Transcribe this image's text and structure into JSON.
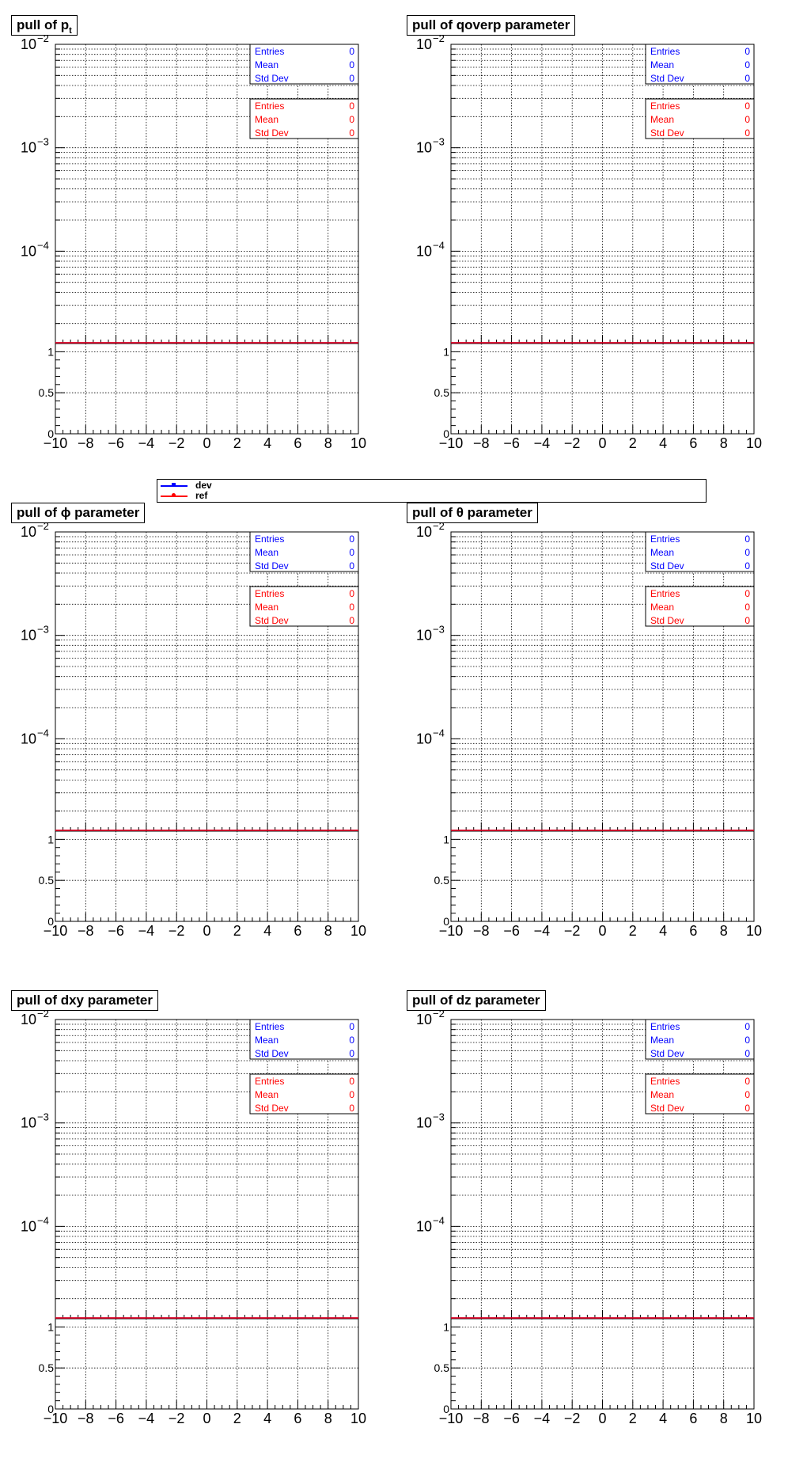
{
  "colors": {
    "dev": "#0000ff",
    "ref": "#ff0000",
    "axis": "#000000",
    "grid": "#000000"
  },
  "legend": {
    "entries": [
      {
        "label": "dev",
        "color": "#0000ff"
      },
      {
        "label": "ref",
        "color": "#ff0000"
      }
    ]
  },
  "chart_data": [
    {
      "type": "line",
      "title": "pull of p",
      "title_sub": "t",
      "x_ticks": [
        "−10",
        "−8",
        "−6",
        "−4",
        "−2",
        "0",
        "2",
        "4",
        "6",
        "8",
        "10"
      ],
      "xlim": [
        -10,
        10
      ],
      "y_log": {
        "scale": "log",
        "ylim": [
          1.28e-05,
          0.01
        ],
        "tick_labels": [
          {
            "base": "10",
            "exp": "−2"
          },
          {
            "base": "10",
            "exp": "−3"
          },
          {
            "base": "10",
            "exp": "−4"
          }
        ]
      },
      "y_lin": {
        "ylim": [
          0,
          1.1
        ],
        "tick_labels": [
          "0",
          "0.5",
          "1"
        ]
      },
      "grid": true,
      "series": [
        {
          "name": "dev",
          "x": [
            -10,
            10
          ],
          "y": [
            0,
            0
          ]
        },
        {
          "name": "ref",
          "x": [
            -10,
            10
          ],
          "y": [
            0,
            0
          ]
        }
      ],
      "stats": [
        {
          "series": "dev",
          "color": "#0000ff",
          "rows": [
            {
              "label": "Entries",
              "value": "0"
            },
            {
              "label": "Mean",
              "value": "0"
            },
            {
              "label": "Std Dev",
              "value": "0"
            }
          ]
        },
        {
          "series": "ref",
          "color": "#ff0000",
          "rows": [
            {
              "label": "Entries",
              "value": "0"
            },
            {
              "label": "Mean",
              "value": "0"
            },
            {
              "label": "Std Dev",
              "value": "0"
            }
          ]
        }
      ]
    },
    {
      "type": "line",
      "title": "pull of qoverp parameter",
      "title_sub": "",
      "x_ticks": [
        "−10",
        "−8",
        "−6",
        "−4",
        "−2",
        "0",
        "2",
        "4",
        "6",
        "8",
        "10"
      ],
      "xlim": [
        -10,
        10
      ],
      "y_log": {
        "scale": "log",
        "ylim": [
          1.28e-05,
          0.01
        ],
        "tick_labels": [
          {
            "base": "10",
            "exp": "−2"
          },
          {
            "base": "10",
            "exp": "−3"
          },
          {
            "base": "10",
            "exp": "−4"
          }
        ]
      },
      "y_lin": {
        "ylim": [
          0,
          1.1
        ],
        "tick_labels": [
          "0",
          "0.5",
          "1"
        ]
      },
      "grid": true,
      "series": [
        {
          "name": "dev",
          "x": [
            -10,
            10
          ],
          "y": [
            0,
            0
          ]
        },
        {
          "name": "ref",
          "x": [
            -10,
            10
          ],
          "y": [
            0,
            0
          ]
        }
      ],
      "stats": [
        {
          "series": "dev",
          "color": "#0000ff",
          "rows": [
            {
              "label": "Entries",
              "value": "0"
            },
            {
              "label": "Mean",
              "value": "0"
            },
            {
              "label": "Std Dev",
              "value": "0"
            }
          ]
        },
        {
          "series": "ref",
          "color": "#ff0000",
          "rows": [
            {
              "label": "Entries",
              "value": "0"
            },
            {
              "label": "Mean",
              "value": "0"
            },
            {
              "label": "Std Dev",
              "value": "0"
            }
          ]
        }
      ]
    },
    {
      "type": "line",
      "title": "pull of ϕ parameter",
      "title_sub": "",
      "x_ticks": [
        "−10",
        "−8",
        "−6",
        "−4",
        "−2",
        "0",
        "2",
        "4",
        "6",
        "8",
        "10"
      ],
      "xlim": [
        -10,
        10
      ],
      "y_log": {
        "scale": "log",
        "ylim": [
          1.28e-05,
          0.01
        ],
        "tick_labels": [
          {
            "base": "10",
            "exp": "−2"
          },
          {
            "base": "10",
            "exp": "−3"
          },
          {
            "base": "10",
            "exp": "−4"
          }
        ]
      },
      "y_lin": {
        "ylim": [
          0,
          1.1
        ],
        "tick_labels": [
          "0",
          "0.5",
          "1"
        ]
      },
      "grid": true,
      "series": [
        {
          "name": "dev",
          "x": [
            -10,
            10
          ],
          "y": [
            0,
            0
          ]
        },
        {
          "name": "ref",
          "x": [
            -10,
            10
          ],
          "y": [
            0,
            0
          ]
        }
      ],
      "stats": [
        {
          "series": "dev",
          "color": "#0000ff",
          "rows": [
            {
              "label": "Entries",
              "value": "0"
            },
            {
              "label": "Mean",
              "value": "0"
            },
            {
              "label": "Std Dev",
              "value": "0"
            }
          ]
        },
        {
          "series": "ref",
          "color": "#ff0000",
          "rows": [
            {
              "label": "Entries",
              "value": "0"
            },
            {
              "label": "Mean",
              "value": "0"
            },
            {
              "label": "Std Dev",
              "value": "0"
            }
          ]
        }
      ]
    },
    {
      "type": "line",
      "title": "pull of θ parameter",
      "title_sub": "",
      "x_ticks": [
        "−10",
        "−8",
        "−6",
        "−4",
        "−2",
        "0",
        "2",
        "4",
        "6",
        "8",
        "10"
      ],
      "xlim": [
        -10,
        10
      ],
      "y_log": {
        "scale": "log",
        "ylim": [
          1.28e-05,
          0.01
        ],
        "tick_labels": [
          {
            "base": "10",
            "exp": "−2"
          },
          {
            "base": "10",
            "exp": "−3"
          },
          {
            "base": "10",
            "exp": "−4"
          }
        ]
      },
      "y_lin": {
        "ylim": [
          0,
          1.1
        ],
        "tick_labels": [
          "0",
          "0.5",
          "1"
        ]
      },
      "grid": true,
      "series": [
        {
          "name": "dev",
          "x": [
            -10,
            10
          ],
          "y": [
            0,
            0
          ]
        },
        {
          "name": "ref",
          "x": [
            -10,
            10
          ],
          "y": [
            0,
            0
          ]
        }
      ],
      "stats": [
        {
          "series": "dev",
          "color": "#0000ff",
          "rows": [
            {
              "label": "Entries",
              "value": "0"
            },
            {
              "label": "Mean",
              "value": "0"
            },
            {
              "label": "Std Dev",
              "value": "0"
            }
          ]
        },
        {
          "series": "ref",
          "color": "#ff0000",
          "rows": [
            {
              "label": "Entries",
              "value": "0"
            },
            {
              "label": "Mean",
              "value": "0"
            },
            {
              "label": "Std Dev",
              "value": "0"
            }
          ]
        }
      ]
    },
    {
      "type": "line",
      "title": "pull of dxy parameter",
      "title_sub": "",
      "x_ticks": [
        "−10",
        "−8",
        "−6",
        "−4",
        "−2",
        "0",
        "2",
        "4",
        "6",
        "8",
        "10"
      ],
      "xlim": [
        -10,
        10
      ],
      "y_log": {
        "scale": "log",
        "ylim": [
          1.28e-05,
          0.01
        ],
        "tick_labels": [
          {
            "base": "10",
            "exp": "−2"
          },
          {
            "base": "10",
            "exp": "−3"
          },
          {
            "base": "10",
            "exp": "−4"
          }
        ]
      },
      "y_lin": {
        "ylim": [
          0,
          1.1
        ],
        "tick_labels": [
          "0",
          "0.5",
          "1"
        ]
      },
      "grid": true,
      "series": [
        {
          "name": "dev",
          "x": [
            -10,
            10
          ],
          "y": [
            0,
            0
          ]
        },
        {
          "name": "ref",
          "x": [
            -10,
            10
          ],
          "y": [
            0,
            0
          ]
        }
      ],
      "stats": [
        {
          "series": "dev",
          "color": "#0000ff",
          "rows": [
            {
              "label": "Entries",
              "value": "0"
            },
            {
              "label": "Mean",
              "value": "0"
            },
            {
              "label": "Std Dev",
              "value": "0"
            }
          ]
        },
        {
          "series": "ref",
          "color": "#ff0000",
          "rows": [
            {
              "label": "Entries",
              "value": "0"
            },
            {
              "label": "Mean",
              "value": "0"
            },
            {
              "label": "Std Dev",
              "value": "0"
            }
          ]
        }
      ]
    },
    {
      "type": "line",
      "title": "pull of dz parameter",
      "title_sub": "",
      "x_ticks": [
        "−10",
        "−8",
        "−6",
        "−4",
        "−2",
        "0",
        "2",
        "4",
        "6",
        "8",
        "10"
      ],
      "xlim": [
        -10,
        10
      ],
      "y_log": {
        "scale": "log",
        "ylim": [
          1.28e-05,
          0.01
        ],
        "tick_labels": [
          {
            "base": "10",
            "exp": "−2"
          },
          {
            "base": "10",
            "exp": "−3"
          },
          {
            "base": "10",
            "exp": "−4"
          }
        ]
      },
      "y_lin": {
        "ylim": [
          0,
          1.1
        ],
        "tick_labels": [
          "0",
          "0.5",
          "1"
        ]
      },
      "grid": true,
      "series": [
        {
          "name": "dev",
          "x": [
            -10,
            10
          ],
          "y": [
            0,
            0
          ]
        },
        {
          "name": "ref",
          "x": [
            -10,
            10
          ],
          "y": [
            0,
            0
          ]
        }
      ],
      "stats": [
        {
          "series": "dev",
          "color": "#0000ff",
          "rows": [
            {
              "label": "Entries",
              "value": "0"
            },
            {
              "label": "Mean",
              "value": "0"
            },
            {
              "label": "Std Dev",
              "value": "0"
            }
          ]
        },
        {
          "series": "ref",
          "color": "#ff0000",
          "rows": [
            {
              "label": "Entries",
              "value": "0"
            },
            {
              "label": "Mean",
              "value": "0"
            },
            {
              "label": "Std Dev",
              "value": "0"
            }
          ]
        }
      ]
    }
  ]
}
